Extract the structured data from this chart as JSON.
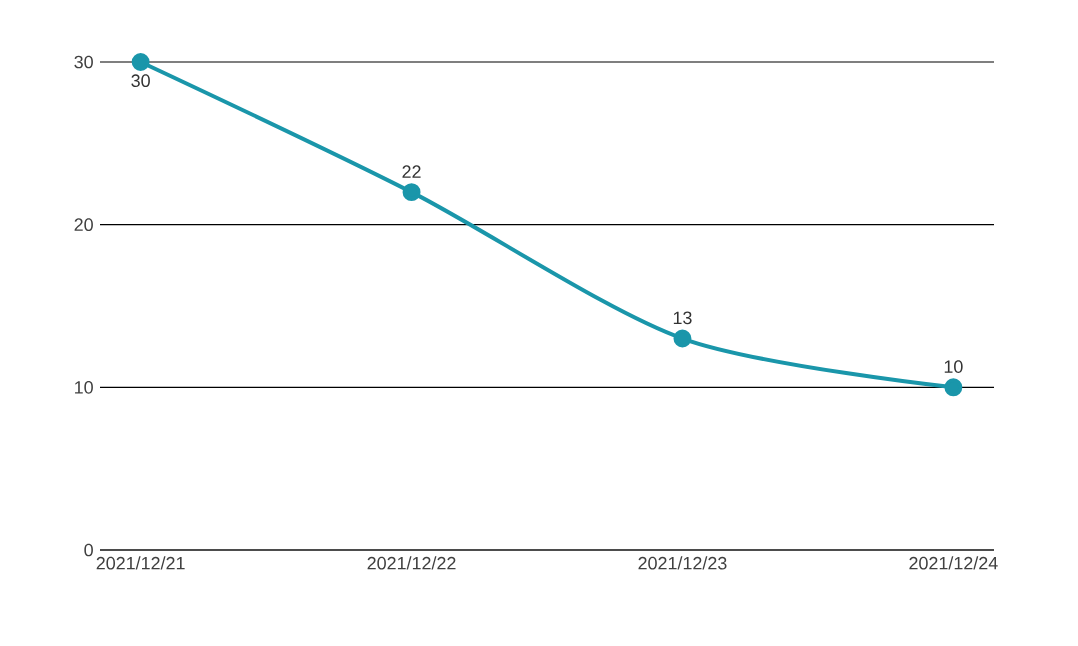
{
  "chart_data": {
    "type": "line",
    "categories": [
      "2021/12/21",
      "2021/12/22",
      "2021/12/23",
      "2021/12/24"
    ],
    "series": [
      {
        "color": "#1a96aa",
        "values": [
          30,
          22,
          13,
          10
        ]
      }
    ],
    "ylim": [
      0,
      30
    ],
    "yticks": [
      0,
      10,
      20,
      30
    ],
    "grid": "y",
    "marker": "circle",
    "line_style": "solid",
    "data_labels": true
  }
}
